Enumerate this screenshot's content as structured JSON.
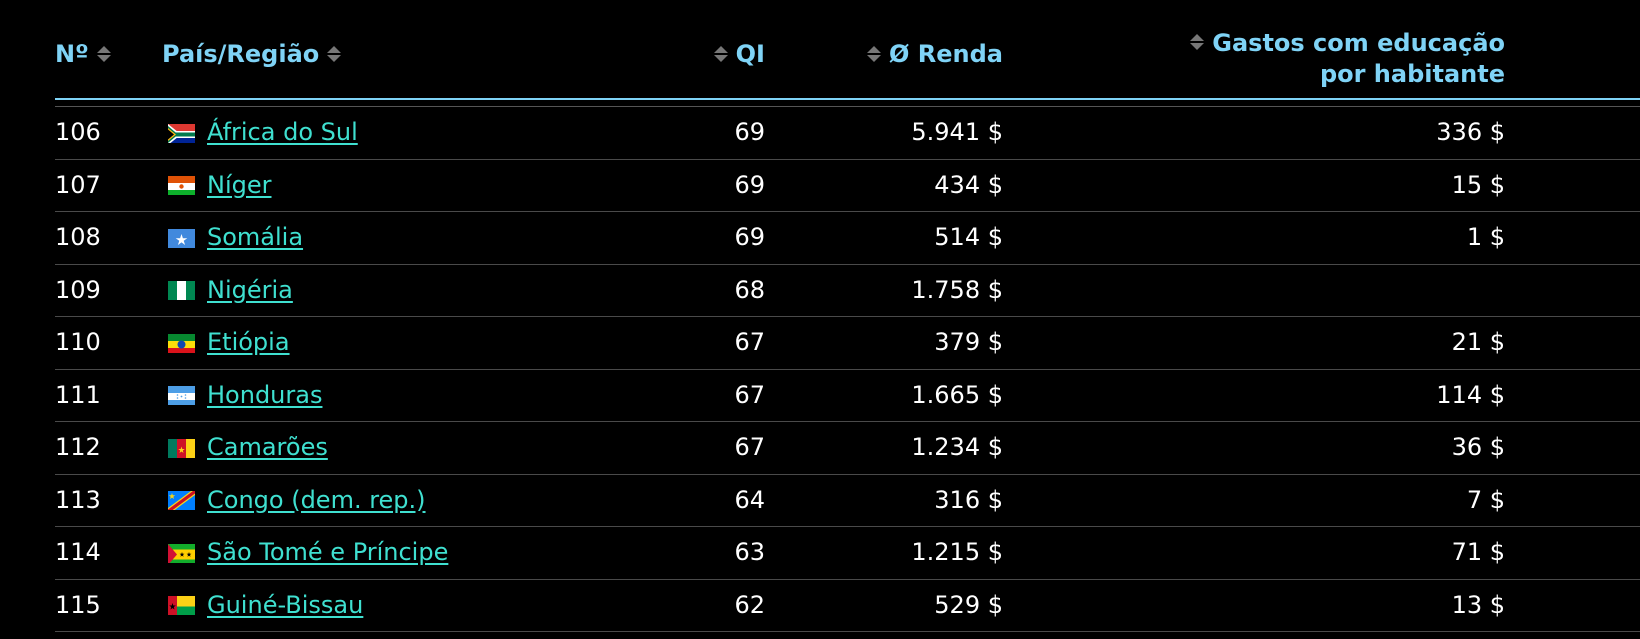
{
  "header": {
    "rank": "Nº",
    "country": "País/Região",
    "iq": "QI",
    "income": "Ø Renda",
    "edu_line1": "Gastos com educação",
    "edu_line2": "por habitante"
  },
  "rows": [
    {
      "rank": "106",
      "country": "África do Sul",
      "flag": "south-africa",
      "iq": "69",
      "income": "5.941 $",
      "edu": "336 $"
    },
    {
      "rank": "107",
      "country": "Níger",
      "flag": "niger",
      "iq": "69",
      "income": "434 $",
      "edu": "15 $"
    },
    {
      "rank": "108",
      "country": "Somália",
      "flag": "somalia",
      "iq": "69",
      "income": "514 $",
      "edu": "1 $"
    },
    {
      "rank": "109",
      "country": "Nigéria",
      "flag": "nigeria",
      "iq": "68",
      "income": "1.758 $",
      "edu": ""
    },
    {
      "rank": "110",
      "country": "Etiópia",
      "flag": "ethiopia",
      "iq": "67",
      "income": "379 $",
      "edu": "21 $"
    },
    {
      "rank": "111",
      "country": "Honduras",
      "flag": "honduras",
      "iq": "67",
      "income": "1.665 $",
      "edu": "114 $"
    },
    {
      "rank": "112",
      "country": "Camarões",
      "flag": "cameroon",
      "iq": "67",
      "income": "1.234 $",
      "edu": "36 $"
    },
    {
      "rank": "113",
      "country": "Congo (dem. rep.)",
      "flag": "congo-dr",
      "iq": "64",
      "income": "316 $",
      "edu": "7 $"
    },
    {
      "rank": "114",
      "country": "São Tomé e Príncipe",
      "flag": "sao-tome",
      "iq": "63",
      "income": "1.215 $",
      "edu": "71 $"
    },
    {
      "rank": "115",
      "country": "Guiné-Bissau",
      "flag": "guinea-bissau",
      "iq": "62",
      "income": "529 $",
      "edu": "13 $"
    }
  ],
  "colors": {
    "background": "#000000",
    "header_text": "#7fd3f6",
    "link": "#3fe0d0"
  }
}
